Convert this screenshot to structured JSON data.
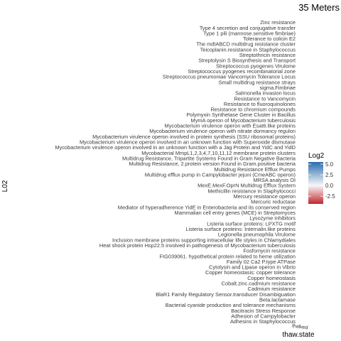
{
  "chart_data": {
    "type": "heatmap",
    "title": "35 Meters",
    "xlabel": "thaw.state",
    "ylabel": "L02",
    "x_categories": [
      "thawed"
    ],
    "y_categories": [
      "Zinc resistance",
      "Type 4 secretion and conjugative transfer",
      "Type 1 pili (mannose.sensitive fimbriae)",
      "Tolerance to colicin E2",
      "The mdtABCD multidrug resistance cluster",
      "Teicoplanin.resistance in Staphylococcus",
      "Streptothricin resistance",
      "Streptolysin S Biosynthesis and Transport",
      "Streptococcus pyogenes Virulome",
      "Streptococcus pyogenes recombinatorial zone",
      "Streptococcus pneumoniae Vancomycin Tolerance Locus",
      "Small multidrug resistance strays",
      "sigma.Fimbriae",
      "Salmonella invasion locus",
      "Resistance to Vancomycin",
      "Resistance to fluoroquinolones",
      "Resistance to chromium compounds",
      "Polymyxin Synthetase Gene Cluster in Bacillus",
      "MymA operon of Mycobacterium tuberculosis",
      "Mycobacterium virulence operon with Esat6.like proteins",
      "Mycobacterium virulence operon with nitrate dormancy regulon",
      "Mycobacterium virulence operon involved in protein synthesis (SSU ribosomal proteins)",
      "Mycobacterium virulence operon involved in an unknown function with Superoxide dismutase",
      "Mycobacterium virulence operon involved in an unknown function with a Jag Protein and YidC and YidD",
      "Mycobacterial MmpL1,2,3,4,7,10,11,12 membrane protein clusters",
      "Multidrug Resistance, Tripartite Systems Found in Gram Negative Bacteria",
      "Multidrug Resistance, 2.protein version Found in Gram.positive bacteria",
      "Multidrug Resistance Efflux Pumps",
      "Multidrug efflux pump in Campylobacter jejuni (CmeABC operon)",
      "MRSA analysis OI",
      "MexE.MexF.OprN Multidrug Efflux System",
      "Methicillin resistance in Staphylococci",
      "Mercury resistance operon",
      "Mercuric reductase",
      "Mediator of hyperadherence YidE in Enterobacteria and its conserved region",
      "Mammalian cell entry genes (MCE) in Streptomyces",
      "Lysozyme inhibitors",
      "Listeria surface proteins: LPXTG motif",
      "Listeria surface proteins: Internalin.like proteins",
      "Legionella pneumophila Virulome",
      "Inclusion membrane proteins supporting intracellular life styles in Chlamydiales",
      "Heat shock protein Hsp22.5 involved in pathogenesis of Mycobacterium tuberculosis",
      "Fosfomycin resistance",
      "FIG039061. hypothetical protein related to heme utilization",
      "Family 02 Ca2 P.type ATPase",
      "Cytolysin and Lipase operon in Vibrio",
      "Copper homeostasis: copper tolerance",
      "Copper homeostasis",
      "Cobalt.zinc.cadmium resistance",
      "Cadmium resistance",
      "BlaR1 Family Regulatory Sensor.transducer Disambiguation",
      "Beta.lactamase",
      "Bacterial cyanide production and tolerance mechanisms",
      "Bacitracin Stress Response",
      "Adhesion of Campylobacter",
      "Adhesins in Staphylococcus"
    ],
    "values": [],
    "legend": {
      "title": "Log2",
      "ticks": [
        5.0,
        2.5,
        0.0,
        -2.5
      ],
      "tick_labels": [
        "5.0",
        "2.5",
        "0.0",
        "-2.5"
      ],
      "range": [
        -4.3,
        5.5
      ],
      "colors": {
        "low": "#c0282e",
        "mid": "#f7f7f7",
        "high": "#2a6db0"
      },
      "placement": "right"
    },
    "grid": false
  }
}
